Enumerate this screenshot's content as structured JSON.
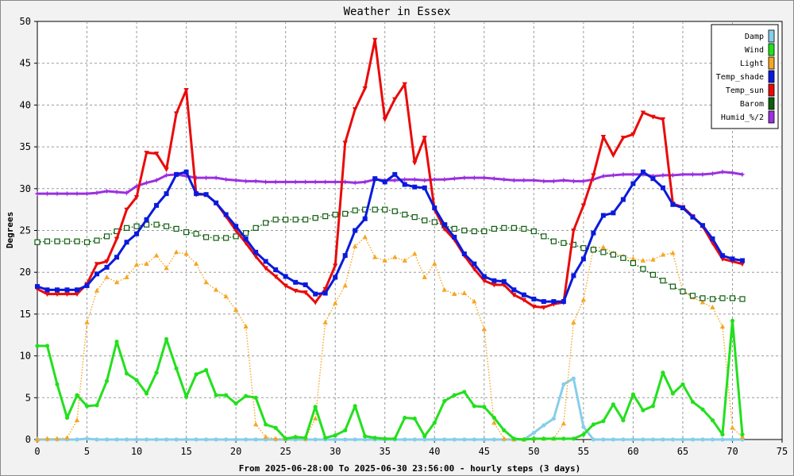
{
  "chart_data": {
    "type": "line",
    "title": "Weather in Essex",
    "xlabel": "From 2025-06-28:00 To 2025-06-30 23:56:00 - hourly steps (3 days)",
    "ylabel": "Degrees",
    "xlim": [
      0,
      75
    ],
    "ylim": [
      0,
      50
    ],
    "xticks": [
      0,
      5,
      10,
      15,
      20,
      25,
      30,
      35,
      40,
      45,
      50,
      55,
      60,
      65,
      70,
      75
    ],
    "yticks": [
      0,
      5,
      10,
      15,
      20,
      25,
      30,
      35,
      40,
      45,
      50
    ],
    "grid": true,
    "legend_position": "top-right",
    "series": [
      {
        "name": "Damp",
        "color": "#87ceeb",
        "marker": "circle",
        "style": "solid",
        "values": [
          0,
          0,
          0,
          0,
          0,
          0.1,
          0,
          0,
          0,
          0,
          0,
          0,
          0,
          0,
          0,
          0,
          0,
          0,
          0,
          0,
          0,
          0,
          0,
          0,
          0,
          0,
          0,
          0,
          0,
          0,
          0,
          0,
          0,
          0,
          0,
          0,
          0,
          0,
          0,
          0,
          0,
          0,
          0,
          0,
          0,
          0,
          0,
          0,
          0,
          0,
          0.8,
          1.7,
          2.5,
          6.6,
          7.3,
          1.5,
          0,
          0,
          0,
          0,
          0,
          0,
          0,
          0,
          0,
          0,
          0,
          0,
          0,
          0,
          0,
          0
        ]
      },
      {
        "name": "Wind",
        "color": "#22e01c",
        "marker": "circle",
        "style": "solid",
        "values": [
          11.2,
          11.2,
          6.6,
          2.6,
          5.3,
          4.0,
          4.1,
          7.0,
          11.7,
          7.9,
          7.1,
          5.5,
          8.0,
          12.0,
          8.5,
          5.1,
          7.8,
          8.3,
          5.3,
          5.3,
          4.3,
          5.2,
          5.0,
          1.8,
          1.4,
          0.1,
          0.3,
          0.2,
          3.9,
          0.2,
          0.5,
          1.1,
          4.0,
          0.4,
          0.2,
          0.1,
          0.1,
          2.6,
          2.5,
          0.4,
          2.0,
          4.6,
          5.3,
          5.7,
          4.0,
          3.9,
          2.6,
          1.1,
          0.1,
          0,
          0.1,
          0.1,
          0.1,
          0.1,
          0.1,
          0.6,
          1.8,
          2.2,
          4.2,
          2.3,
          5.4,
          3.5,
          4.0,
          8.0,
          5.5,
          6.6,
          4.5,
          3.6,
          2.3,
          0.6,
          14.2,
          0.6
        ]
      },
      {
        "name": "Light",
        "color": "#f5a623",
        "marker": "triangle-up",
        "style": "dotted",
        "values": [
          0,
          0.1,
          0.1,
          0.2,
          2.3,
          14.0,
          17.8,
          19.4,
          18.8,
          19.4,
          20.9,
          21.0,
          22.0,
          20.5,
          22.4,
          22.2,
          21.0,
          18.8,
          17.9,
          17.1,
          15.5,
          13.5,
          1.8,
          0.3,
          0.1,
          0.1,
          0.3,
          0.1,
          2.5,
          14.0,
          16.3,
          18.4,
          23.1,
          24.2,
          21.8,
          21.4,
          21.8,
          21.4,
          22.2,
          19.4,
          21.0,
          17.9,
          17.4,
          17.5,
          16.5,
          13.2,
          2.0,
          0.1,
          0,
          0,
          0.1,
          0.1,
          0.1,
          1.9,
          14.0,
          16.7,
          22.9,
          23.0,
          22.3,
          21.9,
          21.6,
          21.4,
          21.5,
          22.1,
          22.3,
          17.7,
          17.0,
          16.4,
          15.8,
          13.5,
          1.4,
          0.3
        ]
      },
      {
        "name": "Temp_shade",
        "color": "#0a1adc",
        "marker": "square",
        "style": "solid",
        "values": [
          18.3,
          17.9,
          17.9,
          17.9,
          17.9,
          18.4,
          19.8,
          20.6,
          21.8,
          23.6,
          24.6,
          26.3,
          28.0,
          29.4,
          31.7,
          32.0,
          29.4,
          29.3,
          28.3,
          26.9,
          25.5,
          24.0,
          22.4,
          21.3,
          20.3,
          19.5,
          18.8,
          18.5,
          17.4,
          17.5,
          19.4,
          22.0,
          25.0,
          26.4,
          31.2,
          30.8,
          31.7,
          30.5,
          30.2,
          30.1,
          27.7,
          25.7,
          24.2,
          22.2,
          21.0,
          19.5,
          19.0,
          18.9,
          17.9,
          17.3,
          16.8,
          16.5,
          16.5,
          16.5,
          19.6,
          21.6,
          24.7,
          26.8,
          27.1,
          28.7,
          30.6,
          32.0,
          31.2,
          30.1,
          28.1,
          27.7,
          26.6,
          25.6,
          24.0,
          22.0,
          21.6,
          21.4
        ]
      },
      {
        "name": "Temp_sun",
        "color": "#ea0a0a",
        "marker": "triangle-down",
        "style": "solid",
        "values": [
          18.0,
          17.4,
          17.4,
          17.4,
          17.4,
          18.6,
          21.0,
          21.3,
          24.0,
          27.5,
          29.0,
          34.3,
          34.2,
          32.3,
          39.0,
          41.8,
          29.3,
          29.3,
          28.3,
          26.7,
          25.0,
          23.5,
          21.9,
          20.5,
          19.5,
          18.4,
          17.8,
          17.6,
          16.4,
          18.0,
          20.8,
          35.5,
          39.5,
          42.0,
          47.8,
          38.3,
          40.7,
          42.5,
          33.1,
          36.1,
          27.5,
          25.2,
          23.9,
          22.0,
          20.4,
          19.0,
          18.5,
          18.5,
          17.3,
          16.7,
          15.9,
          15.8,
          16.2,
          16.4,
          25.0,
          28.0,
          31.6,
          36.2,
          34.0,
          36.1,
          36.5,
          39.1,
          38.6,
          38.3,
          28.2,
          27.8,
          26.7,
          25.5,
          23.5,
          21.6,
          21.3,
          21.0
        ]
      },
      {
        "name": "Barom",
        "color": "#0f5d0f",
        "marker": "square-open",
        "style": "dotted",
        "values": [
          23.6,
          23.7,
          23.7,
          23.7,
          23.7,
          23.6,
          23.8,
          24.3,
          24.9,
          25.3,
          25.5,
          25.7,
          25.7,
          25.5,
          25.2,
          24.8,
          24.6,
          24.2,
          24.1,
          24.1,
          24.3,
          24.7,
          25.3,
          25.9,
          26.3,
          26.3,
          26.3,
          26.3,
          26.5,
          26.7,
          26.9,
          27.0,
          27.4,
          27.5,
          27.5,
          27.5,
          27.3,
          26.9,
          26.6,
          26.2,
          26.0,
          25.6,
          25.2,
          25.0,
          24.9,
          24.9,
          25.2,
          25.3,
          25.3,
          25.2,
          24.9,
          24.3,
          23.7,
          23.5,
          23.3,
          22.9,
          22.7,
          22.4,
          22.1,
          21.7,
          21.1,
          20.4,
          19.7,
          19.0,
          18.3,
          17.7,
          17.2,
          16.9,
          16.8,
          16.9,
          16.9,
          16.8
        ]
      },
      {
        "name": "Humid_%/2",
        "color": "#9b30e0",
        "marker": "star",
        "style": "solid",
        "values": [
          29.4,
          29.4,
          29.4,
          29.4,
          29.4,
          29.4,
          29.5,
          29.7,
          29.6,
          29.5,
          30.3,
          30.7,
          31.0,
          31.6,
          31.7,
          31.5,
          31.3,
          31.3,
          31.3,
          31.1,
          31.0,
          30.9,
          30.9,
          30.8,
          30.8,
          30.8,
          30.8,
          30.8,
          30.8,
          30.8,
          30.8,
          30.8,
          30.7,
          30.8,
          31.1,
          31.0,
          31.0,
          31.1,
          31.1,
          31.0,
          31.1,
          31.1,
          31.2,
          31.3,
          31.3,
          31.3,
          31.2,
          31.1,
          31.0,
          31.0,
          31.0,
          30.9,
          30.9,
          31.0,
          30.9,
          30.9,
          31.1,
          31.5,
          31.6,
          31.7,
          31.7,
          31.7,
          31.5,
          31.6,
          31.6,
          31.7,
          31.7,
          31.7,
          31.8,
          32.0,
          31.9,
          31.7
        ]
      }
    ]
  }
}
